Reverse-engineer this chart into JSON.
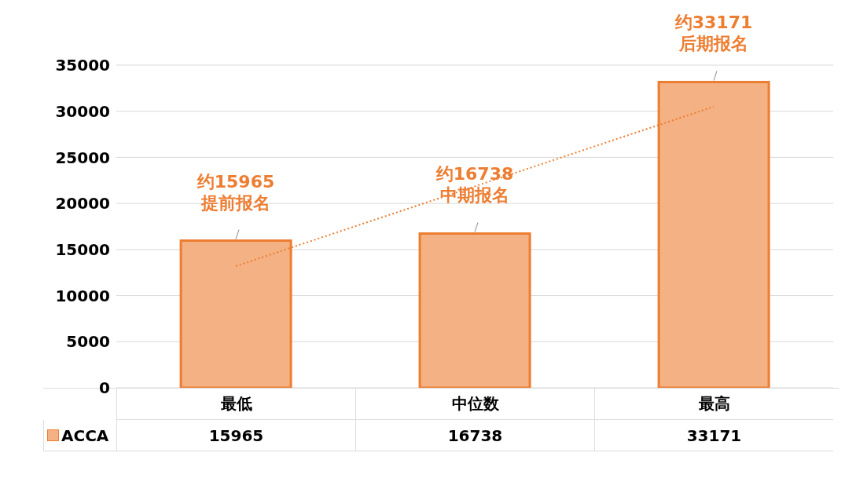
{
  "chart_data": {
    "type": "bar",
    "categories": [
      "最低",
      "中位数",
      "最高"
    ],
    "series": [
      {
        "name": "ACCA",
        "color": "#f4b183",
        "values": [
          15965,
          16738,
          33171
        ],
        "value_labels": [
          "15965",
          "16738",
          "33171"
        ]
      },
      {
        "type": "line",
        "color": "#ed7d31",
        "values": [
          13200,
          null,
          30500
        ],
        "line_style": "dotted",
        "marker": "none"
      }
    ],
    "ylim": [
      0,
      35000
    ],
    "yticks": [
      0,
      5000,
      10000,
      15000,
      20000,
      25000,
      30000,
      35000
    ],
    "grid": "y",
    "legend": "bottom left",
    "annotations": [
      {
        "text": "约15965\n提前报名",
        "x": "最低",
        "y": 15965
      },
      {
        "text": "约16738\n中期报名",
        "x": "中位数",
        "y": 16738
      },
      {
        "text": "约33171\n后期报名",
        "x": "最高",
        "y": 33171
      }
    ]
  }
}
